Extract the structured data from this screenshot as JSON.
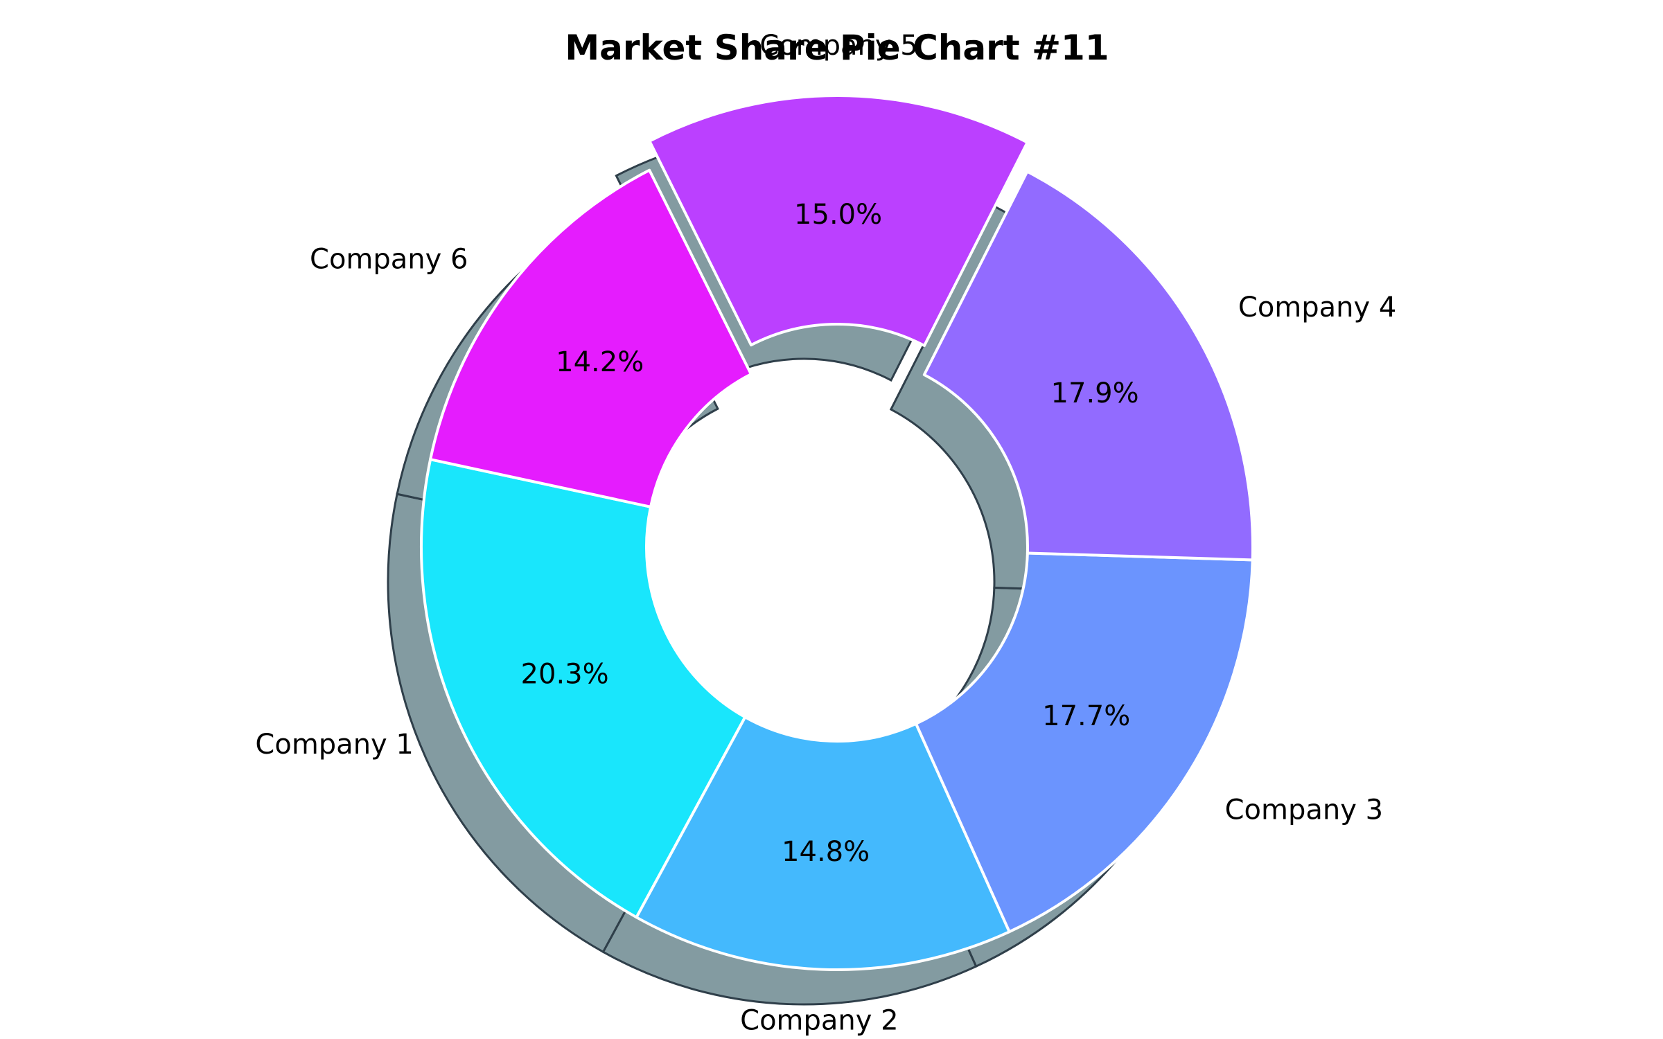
{
  "chart_data": {
    "type": "pie",
    "donut": true,
    "shadow": true,
    "title": "Market Share Pie Chart #11",
    "categories": [
      "Company 1",
      "Company 2",
      "Company 3",
      "Company 4",
      "Company 5",
      "Company 6"
    ],
    "values": [
      20.3,
      14.8,
      17.7,
      17.9,
      15.0,
      14.2
    ],
    "value_labels": [
      "20.3%",
      "14.8%",
      "17.7%",
      "17.9%",
      "15.0%",
      "14.2%"
    ],
    "exploded": [
      false,
      false,
      false,
      false,
      true,
      false
    ],
    "colors": [
      "#19e6fc",
      "#44b9fd",
      "#6b94fe",
      "#926bff",
      "#bb40ff",
      "#e51cfe"
    ],
    "shadow_color": "#5a7a82",
    "edge_color": "#ffffff",
    "direction": "counterclockwise",
    "start_side": "left"
  }
}
